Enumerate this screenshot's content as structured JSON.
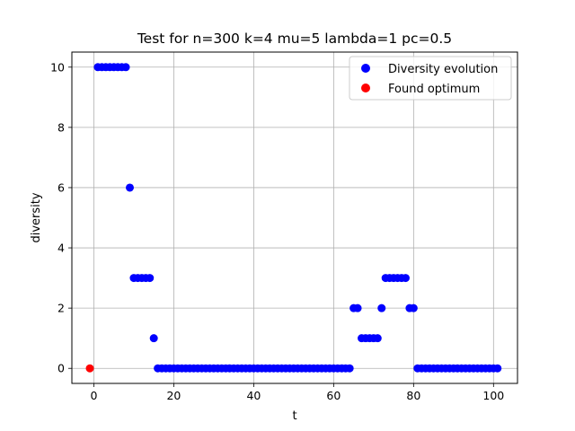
{
  "chart_data": {
    "type": "scatter",
    "title": "Test for n=300 k=4 mu=5 lambda=1 pc=0.5",
    "xlabel": "t",
    "ylabel": "diversity",
    "xlim": [
      -5.5,
      106
    ],
    "ylim": [
      -0.5,
      10.5
    ],
    "xticks": [
      0,
      20,
      40,
      60,
      80,
      100
    ],
    "yticks": [
      0,
      2,
      4,
      6,
      8,
      10
    ],
    "grid": true,
    "legend_position": "upper right",
    "series": [
      {
        "name": "Diversity evolution",
        "color": "#0000ff",
        "x": [
          1,
          2,
          3,
          4,
          5,
          6,
          7,
          8,
          9,
          10,
          11,
          12,
          13,
          14,
          15,
          16,
          17,
          18,
          19,
          20,
          21,
          22,
          23,
          24,
          25,
          26,
          27,
          28,
          29,
          30,
          31,
          32,
          33,
          34,
          35,
          36,
          37,
          38,
          39,
          40,
          41,
          42,
          43,
          44,
          45,
          46,
          47,
          48,
          49,
          50,
          51,
          52,
          53,
          54,
          55,
          56,
          57,
          58,
          59,
          60,
          61,
          62,
          63,
          64,
          65,
          66,
          67,
          68,
          69,
          70,
          71,
          72,
          73,
          74,
          75,
          76,
          77,
          78,
          79,
          80,
          81,
          82,
          83,
          84,
          85,
          86,
          87,
          88,
          89,
          90,
          91,
          92,
          93,
          94,
          95,
          96,
          97,
          98,
          99,
          100,
          101
        ],
        "y": [
          10,
          10,
          10,
          10,
          10,
          10,
          10,
          10,
          6,
          3,
          3,
          3,
          3,
          3,
          1,
          0,
          0,
          0,
          0,
          0,
          0,
          0,
          0,
          0,
          0,
          0,
          0,
          0,
          0,
          0,
          0,
          0,
          0,
          0,
          0,
          0,
          0,
          0,
          0,
          0,
          0,
          0,
          0,
          0,
          0,
          0,
          0,
          0,
          0,
          0,
          0,
          0,
          0,
          0,
          0,
          0,
          0,
          0,
          0,
          0,
          0,
          0,
          0,
          0,
          2,
          2,
          1,
          1,
          1,
          1,
          1,
          2,
          3,
          3,
          3,
          3,
          3,
          3,
          2,
          2,
          0,
          0,
          0,
          0,
          0,
          0,
          0,
          0,
          0,
          0,
          0,
          0,
          0,
          0,
          0,
          0,
          0,
          0,
          0,
          0,
          0
        ]
      },
      {
        "name": "Found optimum",
        "color": "#ff0000",
        "x": [
          -1
        ],
        "y": [
          0
        ]
      }
    ]
  }
}
